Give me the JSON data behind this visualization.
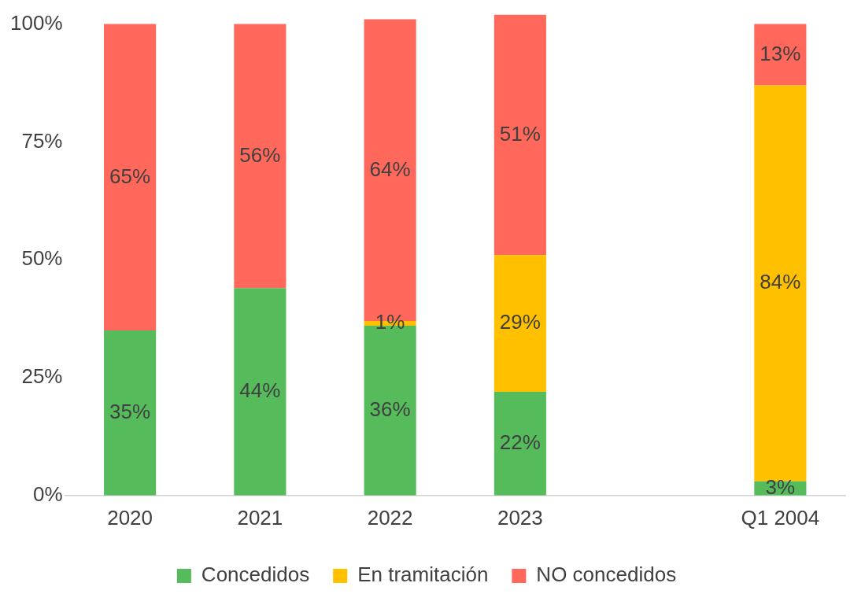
{
  "chart_data": {
    "type": "bar",
    "stacked": true,
    "categories": [
      "2020",
      "2021",
      "2022",
      "2023",
      null,
      "Q1 2004"
    ],
    "series": [
      {
        "name": "Concedidos",
        "color": "#55bb5b",
        "values": [
          35,
          44,
          36,
          22,
          null,
          3
        ],
        "value_labels": [
          "35%",
          "44%",
          "36%",
          "22%",
          null,
          "3%"
        ]
      },
      {
        "name": "En tramitación",
        "color": "#ffc000",
        "values": [
          null,
          null,
          1,
          29,
          null,
          84
        ],
        "value_labels": [
          null,
          null,
          "1%",
          "29%",
          null,
          "84%"
        ]
      },
      {
        "name": "NO concedidos",
        "color": "#ff685a",
        "values": [
          65,
          56,
          64,
          51,
          null,
          13
        ],
        "value_labels": [
          "65%",
          "56%",
          "64%",
          "51%",
          null,
          "13%"
        ]
      }
    ],
    "ylim": [
      0,
      102
    ],
    "yticks": [
      {
        "value": 0,
        "label": "0%"
      },
      {
        "value": 25,
        "label": "25%"
      },
      {
        "value": 50,
        "label": "50%"
      },
      {
        "value": 75,
        "label": "75%"
      },
      {
        "value": 100,
        "label": "100%"
      }
    ],
    "grid": false,
    "legend": "bottom"
  }
}
